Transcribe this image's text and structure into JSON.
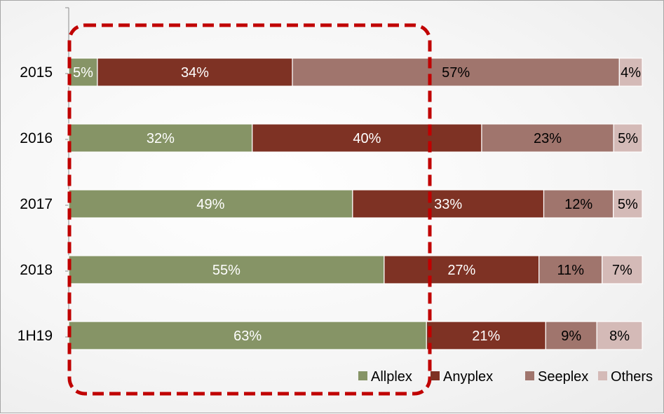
{
  "chart_data": {
    "type": "bar",
    "orientation": "horizontal",
    "stacked": "percent",
    "categories": [
      "2015",
      "2016",
      "2017",
      "2018",
      "1H19"
    ],
    "series": [
      {
        "name": "Allplex",
        "values": [
          5,
          32,
          49,
          55,
          63
        ],
        "labels": [
          "5%",
          "32%",
          "49%",
          "55%",
          "63%"
        ]
      },
      {
        "name": "Anyplex",
        "values": [
          34,
          40,
          33,
          27,
          21
        ],
        "labels": [
          "34%",
          "40%",
          "33%",
          "27%",
          "21%"
        ]
      },
      {
        "name": "Seeplex",
        "values": [
          57,
          23,
          12,
          11,
          9
        ],
        "labels": [
          "57%",
          "23%",
          "12%",
          "11%",
          "9%"
        ]
      },
      {
        "name": "Others",
        "values": [
          4,
          5,
          5,
          7,
          8
        ],
        "labels": [
          "4%",
          "5%",
          "5%",
          "7%",
          "8%"
        ]
      }
    ],
    "colors": {
      "Allplex": "#869466",
      "Anyplex": "#7e3224",
      "Seeplex": "#a0756d",
      "Others": "#d4bab7"
    },
    "label_colors": {
      "Allplex": "#ffffff",
      "Anyplex": "#ffffff",
      "Seeplex": "#000000",
      "Others": "#000000"
    },
    "highlight_box_color": "#c00000",
    "legend_position": "bottom-right",
    "grid": false
  }
}
